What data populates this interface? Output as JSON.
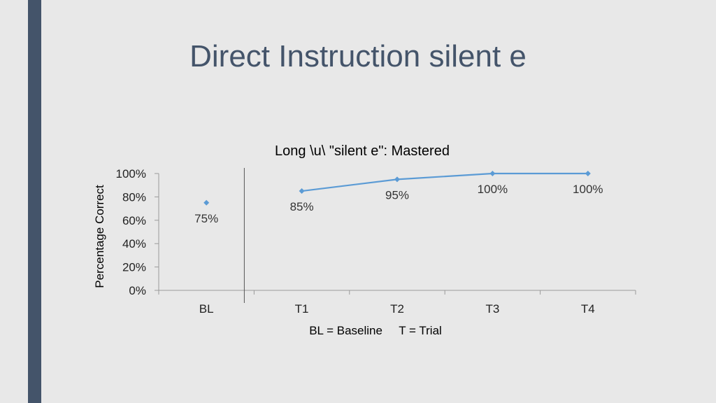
{
  "slide": {
    "title": "Direct Instruction silent e",
    "accent_color": "#44546a"
  },
  "chart_data": {
    "type": "line",
    "title": "Long \\u\\ \"silent e\": Mastered",
    "xlabel": "BL = Baseline     T = Trial",
    "ylabel": "Percentage Correct",
    "categories": [
      "BL",
      "T1",
      "T2",
      "T3",
      "T4"
    ],
    "ylim": [
      0,
      100
    ],
    "yticks": [
      0,
      20,
      40,
      60,
      80,
      100
    ],
    "ytick_labels": [
      "0%",
      "20%",
      "40%",
      "60%",
      "80%",
      "100%"
    ],
    "series": [
      {
        "values": [
          75,
          85,
          95,
          100,
          100
        ],
        "labels": [
          "75%",
          "85%",
          "95%",
          "100%",
          "100%"
        ],
        "color": "#5b9bd5"
      }
    ],
    "phase_line_after": "BL",
    "grid": false
  }
}
